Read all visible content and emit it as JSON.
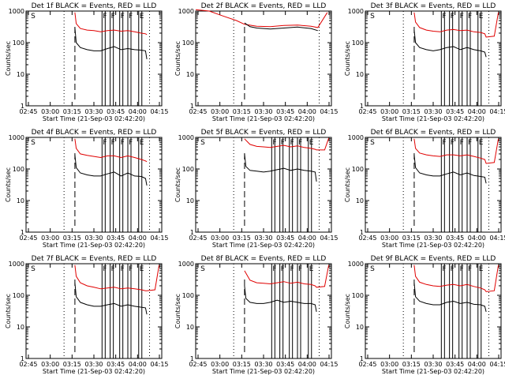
{
  "figure": {
    "background": "#ffffff",
    "axis_color": "#000000",
    "events_color": "#000000",
    "lld_color": "#e00000"
  },
  "chart_data": [
    {
      "type": "line",
      "title": "Det 1f BLACK = Events, RED = LLD",
      "xlabel": "Start Time (21-Sep-03 02:42:20)",
      "ylabel": "Counts/sec",
      "x_ticks": [
        "02:45",
        "03:00",
        "03:15",
        "03:30",
        "03:45",
        "04:00",
        "04:15"
      ],
      "y_ticks": [
        "1",
        "10",
        "100",
        "1000"
      ],
      "yscale": "log",
      "ylim": [
        1,
        1000
      ],
      "xlim_minutes_after_0242": [
        0,
        100
      ],
      "markers": [
        {
          "label": "S",
          "x": 3
        },
        {
          "label": "F",
          "x": 56
        },
        {
          "label": "F",
          "x": 62
        },
        {
          "label": "F",
          "x": 69
        },
        {
          "label": "F",
          "x": 75
        },
        {
          "label": "E",
          "x": 83
        }
      ],
      "dotted_x": [
        28,
        91
      ],
      "dashed_x": [
        36
      ],
      "series": [
        {
          "x": [
            36,
            37,
            40,
            45,
            50,
            55,
            60,
            65,
            70,
            75,
            80,
            85,
            88,
            89
          ],
          "values": [
            900,
            400,
            280,
            250,
            240,
            220,
            240,
            250,
            230,
            240,
            220,
            200,
            190,
            180
          ]
        },
        {
          "x": [
            36,
            37,
            40,
            45,
            50,
            55,
            60,
            65,
            70,
            75,
            80,
            85,
            88,
            89
          ],
          "values": [
            300,
            100,
            70,
            60,
            55,
            55,
            65,
            75,
            60,
            65,
            60,
            58,
            55,
            30
          ]
        }
      ]
    },
    {
      "type": "line",
      "title": "Det 2f BLACK = Events, RED = LLD",
      "xlabel": "Start Time (21-Sep-03 02:42:20)",
      "ylabel": "Counts/sec",
      "x_ticks": [
        "02:45",
        "03:00",
        "03:15",
        "03:30",
        "03:45",
        "04:00",
        "04:15"
      ],
      "y_ticks": [
        "1",
        "10",
        "100",
        "1000"
      ],
      "yscale": "log",
      "ylim": [
        1,
        1000
      ],
      "markers": [],
      "dotted_x": [
        28,
        91
      ],
      "dashed_x": [
        36
      ],
      "series": [
        {
          "x": [
            0,
            10,
            20,
            30,
            36,
            45,
            55,
            65,
            75,
            85,
            90,
            97
          ],
          "values": [
            1100,
            1000,
            700,
            500,
            380,
            330,
            320,
            350,
            360,
            330,
            300,
            900
          ]
        },
        {
          "x": [
            36,
            40,
            45,
            55,
            65,
            75,
            85,
            90
          ],
          "values": [
            420,
            320,
            290,
            270,
            290,
            310,
            280,
            240
          ]
        }
      ]
    },
    {
      "type": "line",
      "title": "Det 3f BLACK = Events, RED = LLD",
      "xlabel": "Start Time (21-Sep-03 02:42:20)",
      "ylabel": "Counts/sec",
      "x_ticks": [
        "02:45",
        "03:00",
        "03:15",
        "03:30",
        "03:45",
        "04:00",
        "04:15"
      ],
      "y_ticks": [
        "1",
        "10",
        "100",
        "1000"
      ],
      "yscale": "log",
      "ylim": [
        1,
        1000
      ],
      "markers": [
        {
          "label": "S",
          "x": 3
        },
        {
          "label": "F",
          "x": 56
        },
        {
          "label": "F",
          "x": 62
        },
        {
          "label": "F",
          "x": 69
        },
        {
          "label": "F",
          "x": 75
        },
        {
          "label": "E",
          "x": 83
        }
      ],
      "dotted_x": [
        28,
        91
      ],
      "dashed_x": [
        36
      ],
      "series": [
        {
          "x": [
            36,
            37,
            40,
            45,
            50,
            55,
            60,
            65,
            70,
            75,
            80,
            85,
            88,
            89,
            95,
            98
          ],
          "values": [
            900,
            450,
            300,
            250,
            230,
            220,
            250,
            260,
            240,
            250,
            220,
            210,
            190,
            150,
            160,
            900
          ]
        },
        {
          "x": [
            36,
            37,
            40,
            45,
            50,
            55,
            60,
            65,
            70,
            75,
            80,
            85,
            88,
            89
          ],
          "values": [
            250,
            100,
            70,
            60,
            55,
            60,
            70,
            75,
            60,
            70,
            60,
            55,
            50,
            35
          ]
        }
      ]
    },
    {
      "type": "line",
      "title": "Det 4f BLACK = Events, RED = LLD",
      "xlabel": "Start Time (21-Sep-03 02:42:20)",
      "ylabel": "Counts/sec",
      "x_ticks": [
        "02:45",
        "03:00",
        "03:15",
        "03:30",
        "03:45",
        "04:00",
        "04:15"
      ],
      "y_ticks": [
        "1",
        "10",
        "100",
        "1000"
      ],
      "yscale": "log",
      "ylim": [
        1,
        1000
      ],
      "markers": [
        {
          "label": "S",
          "x": 3
        },
        {
          "label": "F",
          "x": 56
        },
        {
          "label": "F",
          "x": 62
        },
        {
          "label": "F",
          "x": 69
        },
        {
          "label": "F",
          "x": 75
        },
        {
          "label": "E",
          "x": 83
        }
      ],
      "dotted_x": [
        28,
        91
      ],
      "dashed_x": [
        36
      ],
      "series": [
        {
          "x": [
            36,
            37,
            40,
            45,
            50,
            55,
            60,
            65,
            70,
            75,
            80,
            85,
            88,
            89
          ],
          "values": [
            900,
            450,
            300,
            270,
            250,
            230,
            260,
            260,
            230,
            260,
            230,
            200,
            180,
            170
          ]
        },
        {
          "x": [
            36,
            37,
            40,
            45,
            50,
            55,
            60,
            65,
            70,
            75,
            80,
            85,
            88,
            89
          ],
          "values": [
            280,
            110,
            75,
            65,
            60,
            60,
            70,
            80,
            60,
            75,
            60,
            58,
            50,
            30
          ]
        }
      ]
    },
    {
      "type": "line",
      "title": "Det 5f BLACK = Events, RED = LLD",
      "xlabel": "Start Time (21-Sep-03 02:42:20)",
      "ylabel": "Counts/sec",
      "x_ticks": [
        "02:45",
        "03:00",
        "03:15",
        "03:30",
        "03:45",
        "04:00",
        "04:15"
      ],
      "y_ticks": [
        "1",
        "10",
        "100",
        "1000"
      ],
      "yscale": "log",
      "ylim": [
        1,
        1000
      ],
      "markers": [
        {
          "label": "S",
          "x": 3
        },
        {
          "label": "F",
          "x": 56
        },
        {
          "label": "F",
          "x": 62
        },
        {
          "label": "F",
          "x": 69
        },
        {
          "label": "F",
          "x": 75
        },
        {
          "label": "E",
          "x": 83
        }
      ],
      "dotted_x": [
        28,
        91
      ],
      "dashed_x": [
        36
      ],
      "series": [
        {
          "x": [
            36,
            40,
            45,
            50,
            55,
            60,
            65,
            70,
            75,
            80,
            85,
            88,
            89,
            95,
            98
          ],
          "values": [
            900,
            600,
            520,
            500,
            480,
            520,
            560,
            500,
            540,
            480,
            450,
            420,
            400,
            400,
            950
          ]
        },
        {
          "x": [
            36,
            37,
            40,
            45,
            50,
            55,
            60,
            65,
            70,
            75,
            80,
            85,
            88,
            89
          ],
          "values": [
            300,
            120,
            90,
            85,
            80,
            85,
            95,
            105,
            90,
            100,
            90,
            85,
            80,
            40
          ]
        }
      ]
    },
    {
      "type": "line",
      "title": "Det 6f BLACK = Events, RED = LLD",
      "xlabel": "Start Time (21-Sep-03 02:42:20)",
      "ylabel": "Counts/sec",
      "x_ticks": [
        "02:45",
        "03:00",
        "03:15",
        "03:30",
        "03:45",
        "04:00",
        "04:15"
      ],
      "y_ticks": [
        "1",
        "10",
        "100",
        "1000"
      ],
      "yscale": "log",
      "ylim": [
        1,
        1000
      ],
      "markers": [
        {
          "label": "S",
          "x": 3
        },
        {
          "label": "F",
          "x": 56
        },
        {
          "label": "F",
          "x": 62
        },
        {
          "label": "F",
          "x": 69
        },
        {
          "label": "F",
          "x": 75
        },
        {
          "label": "E",
          "x": 83
        }
      ],
      "dotted_x": [
        28,
        91
      ],
      "dashed_x": [
        36
      ],
      "series": [
        {
          "x": [
            36,
            37,
            40,
            45,
            50,
            55,
            60,
            65,
            70,
            75,
            80,
            85,
            88,
            89,
            95,
            98
          ],
          "values": [
            900,
            450,
            320,
            280,
            260,
            250,
            280,
            280,
            260,
            280,
            250,
            220,
            200,
            150,
            160,
            900
          ]
        },
        {
          "x": [
            36,
            37,
            40,
            45,
            50,
            55,
            60,
            65,
            70,
            75,
            80,
            85,
            88,
            89
          ],
          "values": [
            280,
            110,
            75,
            65,
            60,
            60,
            70,
            80,
            65,
            75,
            62,
            58,
            55,
            35
          ]
        }
      ]
    },
    {
      "type": "line",
      "title": "Det 7f BLACK = Events, RED = LLD",
      "xlabel": "Start Time (21-Sep-03 02:42:20)",
      "ylabel": "Counts/sec",
      "x_ticks": [
        "02:45",
        "03:00",
        "03:15",
        "03:30",
        "03:45",
        "04:00",
        "04:15"
      ],
      "y_ticks": [
        "1",
        "10",
        "100",
        "1000"
      ],
      "yscale": "log",
      "ylim": [
        1,
        1000
      ],
      "markers": [
        {
          "label": "S",
          "x": 3
        },
        {
          "label": "F",
          "x": 56
        },
        {
          "label": "F",
          "x": 62
        },
        {
          "label": "F",
          "x": 69
        },
        {
          "label": "F",
          "x": 75
        },
        {
          "label": "E",
          "x": 83
        }
      ],
      "dotted_x": [
        28,
        91
      ],
      "dashed_x": [
        36
      ],
      "series": [
        {
          "x": [
            36,
            37,
            40,
            45,
            50,
            55,
            60,
            65,
            70,
            75,
            80,
            85,
            88,
            89,
            95,
            98
          ],
          "values": [
            900,
            400,
            250,
            200,
            180,
            160,
            170,
            180,
            160,
            170,
            160,
            150,
            140,
            140,
            150,
            900
          ]
        },
        {
          "x": [
            36,
            37,
            40,
            45,
            50,
            55,
            60,
            65,
            70,
            75,
            80,
            85,
            88,
            89
          ],
          "values": [
            250,
            90,
            60,
            50,
            45,
            45,
            50,
            55,
            45,
            50,
            45,
            42,
            40,
            25
          ]
        }
      ]
    },
    {
      "type": "line",
      "title": "Det 8f BLACK = Events, RED = LLD",
      "xlabel": "Start Time (21-Sep-03 02:42:20)",
      "ylabel": "Counts/sec",
      "x_ticks": [
        "02:45",
        "03:00",
        "03:15",
        "03:30",
        "03:45",
        "04:00",
        "04:15"
      ],
      "y_ticks": [
        "1",
        "10",
        "100",
        "1000"
      ],
      "yscale": "log",
      "ylim": [
        1,
        1000
      ],
      "markers": [
        {
          "label": "S",
          "x": 3
        },
        {
          "label": "F",
          "x": 56
        },
        {
          "label": "F",
          "x": 62
        },
        {
          "label": "F",
          "x": 69
        },
        {
          "label": "F",
          "x": 75
        },
        {
          "label": "E",
          "x": 83
        }
      ],
      "dotted_x": [
        28,
        91
      ],
      "dashed_x": [
        36
      ],
      "series": [
        {
          "x": [
            36,
            40,
            45,
            50,
            55,
            60,
            65,
            70,
            75,
            80,
            85,
            88,
            89,
            95,
            98
          ],
          "values": [
            600,
            300,
            250,
            240,
            230,
            250,
            270,
            240,
            260,
            230,
            220,
            200,
            180,
            190,
            900
          ]
        },
        {
          "x": [
            36,
            37,
            40,
            45,
            50,
            55,
            60,
            65,
            70,
            75,
            80,
            85,
            88,
            89
          ],
          "values": [
            200,
            80,
            60,
            55,
            55,
            60,
            70,
            60,
            65,
            60,
            55,
            55,
            50,
            30
          ]
        }
      ]
    },
    {
      "type": "line",
      "title": "Det 9f BLACK = Events, RED = LLD",
      "xlabel": "Start Time (21-Sep-03 02:42:20)",
      "ylabel": "Counts/sec",
      "x_ticks": [
        "02:45",
        "03:00",
        "03:15",
        "03:30",
        "03:45",
        "04:00",
        "04:15"
      ],
      "y_ticks": [
        "1",
        "10",
        "100",
        "1000"
      ],
      "yscale": "log",
      "ylim": [
        1,
        1000
      ],
      "markers": [
        {
          "label": "S",
          "x": 3
        },
        {
          "label": "F",
          "x": 56
        },
        {
          "label": "F",
          "x": 62
        },
        {
          "label": "F",
          "x": 69
        },
        {
          "label": "F",
          "x": 75
        },
        {
          "label": "E",
          "x": 83
        }
      ],
      "dotted_x": [
        28,
        91
      ],
      "dashed_x": [
        36
      ],
      "series": [
        {
          "x": [
            36,
            37,
            40,
            45,
            50,
            55,
            60,
            65,
            70,
            75,
            80,
            85,
            88,
            89,
            95,
            98
          ],
          "values": [
            900,
            400,
            260,
            220,
            200,
            190,
            210,
            220,
            200,
            220,
            190,
            170,
            150,
            130,
            140,
            900
          ]
        },
        {
          "x": [
            36,
            37,
            40,
            45,
            50,
            55,
            60,
            65,
            70,
            75,
            80,
            85,
            88,
            89
          ],
          "values": [
            250,
            90,
            65,
            55,
            50,
            50,
            60,
            65,
            55,
            60,
            52,
            50,
            45,
            30
          ]
        }
      ]
    }
  ]
}
